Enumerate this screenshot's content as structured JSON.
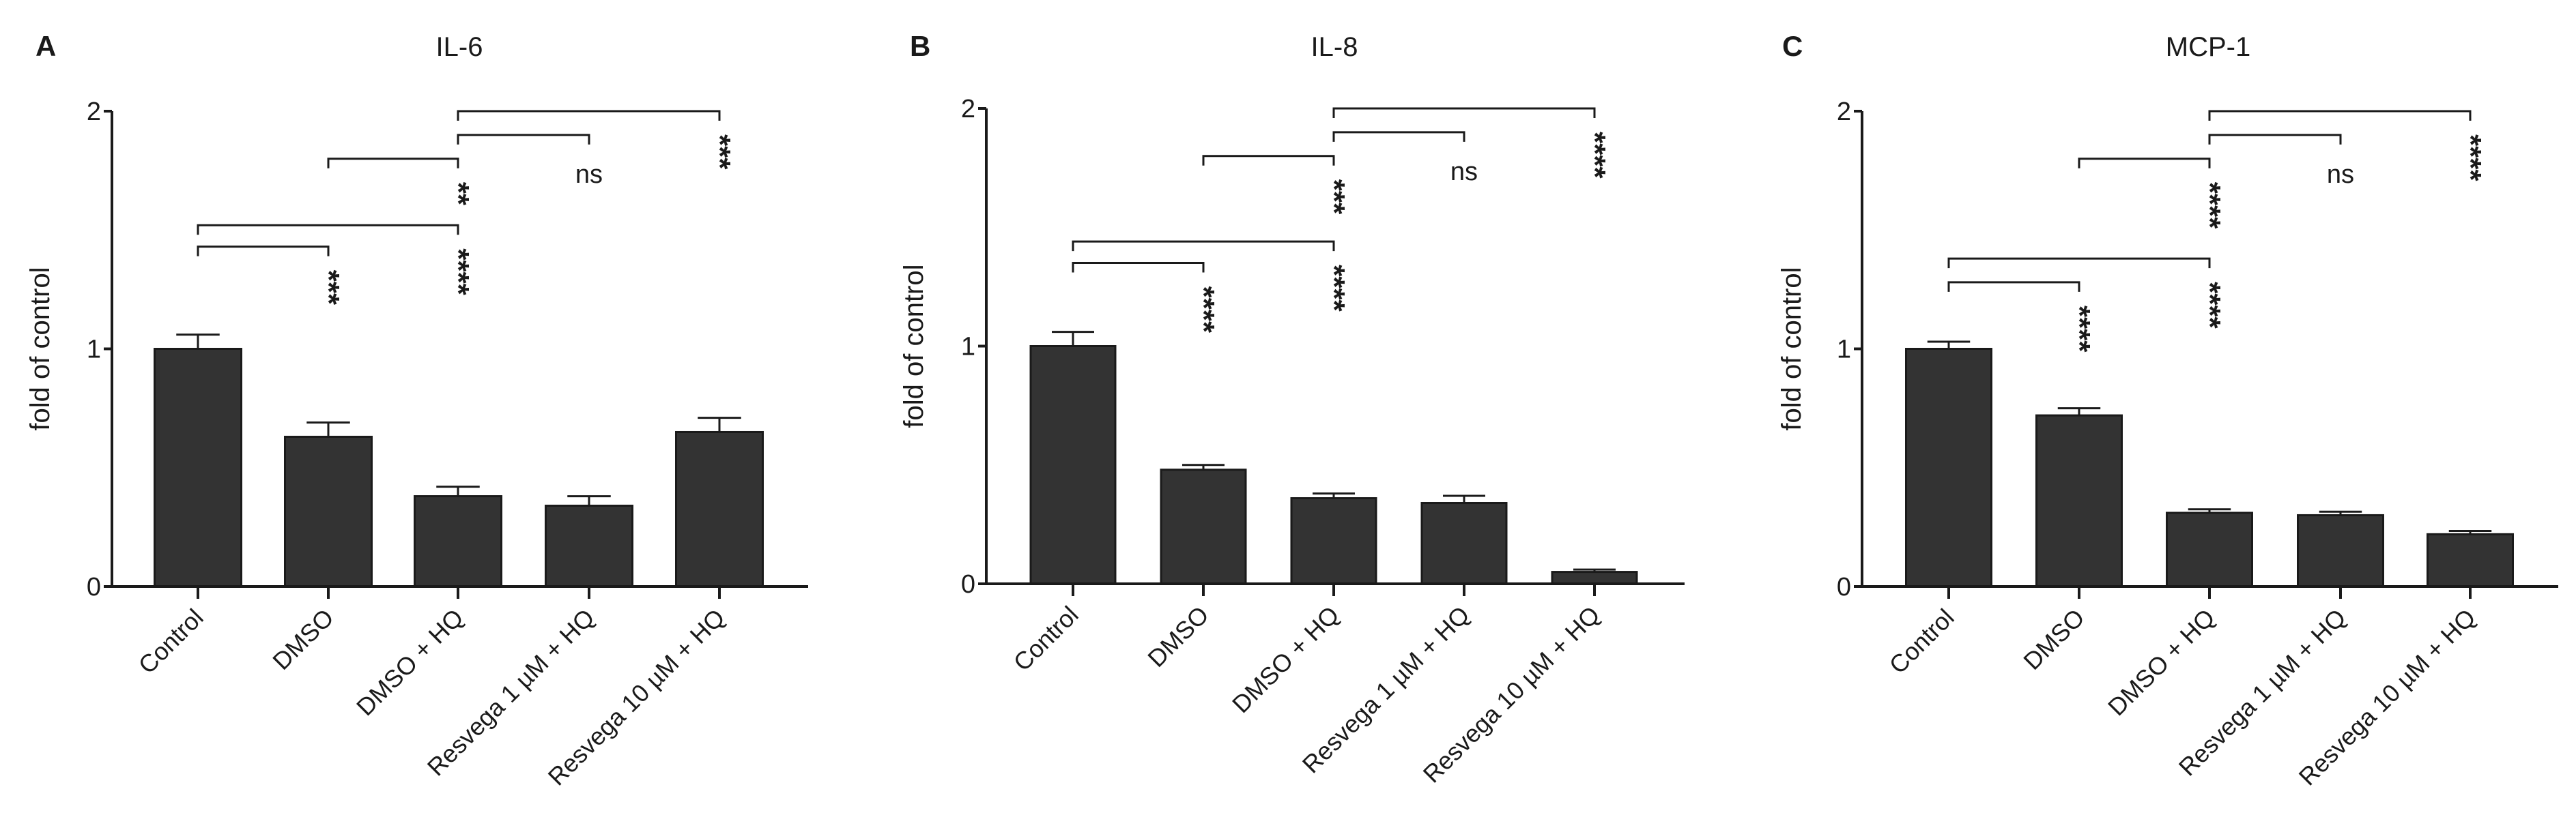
{
  "chart_data": [
    {
      "type": "bar",
      "panel_label": "A",
      "title": "IL-6",
      "xlabel": "",
      "ylabel": "fold of control",
      "ylim": [
        0,
        2
      ],
      "yticks": [
        "0",
        "1",
        "2"
      ],
      "categories": [
        "Control",
        "DMSO",
        "DMSO + HQ",
        "Resvega 1 µM + HQ",
        "Resvega 10 µM + HQ"
      ],
      "values": [
        1.0,
        0.63,
        0.38,
        0.34,
        0.65
      ],
      "errors": [
        0.06,
        0.06,
        0.04,
        0.04,
        0.06
      ],
      "comparisons": [
        {
          "from": 0,
          "to": 1,
          "level": 1.43,
          "label": "***"
        },
        {
          "from": 0,
          "to": 2,
          "level": 1.52,
          "label": "****"
        },
        {
          "from": 1,
          "to": 2,
          "level": 1.8,
          "label": "**"
        },
        {
          "from": 2,
          "to": 3,
          "level": 1.9,
          "label": "ns"
        },
        {
          "from": 2,
          "to": 4,
          "level": 2.0,
          "label": "***"
        }
      ],
      "color": "#333333"
    },
    {
      "type": "bar",
      "panel_label": "B",
      "title": "IL-8",
      "xlabel": "",
      "ylabel": "fold of control",
      "ylim": [
        0,
        2
      ],
      "yticks": [
        "0",
        "1",
        "2"
      ],
      "categories": [
        "Control",
        "DMSO",
        "DMSO + HQ",
        "Resvega 1 µM + HQ",
        "Resvega 10 µM + HQ"
      ],
      "values": [
        1.0,
        0.48,
        0.36,
        0.34,
        0.05
      ],
      "errors": [
        0.06,
        0.02,
        0.02,
        0.03,
        0.01
      ],
      "comparisons": [
        {
          "from": 0,
          "to": 1,
          "level": 1.35,
          "label": "****"
        },
        {
          "from": 0,
          "to": 2,
          "level": 1.44,
          "label": "****"
        },
        {
          "from": 1,
          "to": 2,
          "level": 1.8,
          "label": "***"
        },
        {
          "from": 2,
          "to": 3,
          "level": 1.9,
          "label": "ns"
        },
        {
          "from": 2,
          "to": 4,
          "level": 2.0,
          "label": "****"
        }
      ],
      "color": "#333333"
    },
    {
      "type": "bar",
      "panel_label": "C",
      "title": "MCP-1",
      "xlabel": "",
      "ylabel": "fold of control",
      "ylim": [
        0,
        2
      ],
      "yticks": [
        "0",
        "1",
        "2"
      ],
      "categories": [
        "Control",
        "DMSO",
        "DMSO + HQ",
        "Resvega 1 µM + HQ",
        "Resvega 10 µM + HQ"
      ],
      "values": [
        1.0,
        0.72,
        0.31,
        0.3,
        0.22
      ],
      "errors": [
        0.03,
        0.03,
        0.015,
        0.015,
        0.014
      ],
      "comparisons": [
        {
          "from": 0,
          "to": 1,
          "level": 1.28,
          "label": "****"
        },
        {
          "from": 0,
          "to": 2,
          "level": 1.38,
          "label": "****"
        },
        {
          "from": 1,
          "to": 2,
          "level": 1.8,
          "label": "****"
        },
        {
          "from": 2,
          "to": 3,
          "level": 1.9,
          "label": "ns"
        },
        {
          "from": 2,
          "to": 4,
          "level": 2.0,
          "label": "****"
        }
      ],
      "color": "#333333"
    }
  ]
}
